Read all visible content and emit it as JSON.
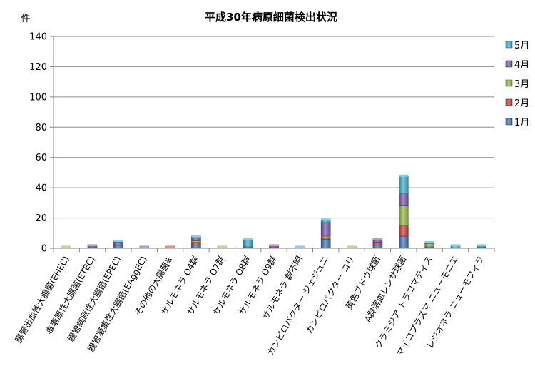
{
  "chart_data": {
    "type": "bar",
    "stacked": true,
    "title": "平成30年病原細菌検出状況",
    "ylabel": "件",
    "xlabel": "",
    "ylim": [
      0,
      140
    ],
    "yticks": [
      0,
      20,
      40,
      60,
      80,
      100,
      120,
      140
    ],
    "grid": true,
    "legend_position": "right",
    "categories": [
      "腸管出血性大腸菌(EHEC)",
      "毒素原性大腸菌(ETEC)",
      "腸管病原性大腸菌(EPEC)",
      "腸管凝集性大腸菌(EAggEC)",
      "その他の大腸菌※",
      "サルモネラ O4群",
      "サルモネラ O7群",
      "サルモネラ O8群",
      "サルモネラ O9群",
      "サルモネラ 群不明",
      "カンピロバクター ジェジュニ",
      "カンピロバクター コリ",
      "黄色ブドウ球菌",
      "A群溶血レンサ球菌",
      "クラミジア トラコマティス",
      "マイコプラズマ ニューモニエ",
      "レジオネラ ニューモフィラ"
    ],
    "series": [
      {
        "name": "1月",
        "color": "#3b6db4",
        "values": [
          0,
          1,
          2,
          0,
          0,
          2,
          0,
          1,
          0,
          0,
          6,
          0,
          2,
          8,
          1,
          0,
          1
        ]
      },
      {
        "name": "2月",
        "color": "#c0392f",
        "values": [
          0,
          0,
          0,
          0,
          1,
          2,
          0,
          0,
          1,
          0,
          1,
          0,
          2,
          7,
          0,
          0,
          0
        ]
      },
      {
        "name": "3月",
        "color": "#8db43c",
        "values": [
          1,
          0,
          0,
          0,
          0,
          1,
          1,
          0,
          0,
          0,
          1,
          1,
          0,
          13,
          2,
          0,
          0
        ]
      },
      {
        "name": "4月",
        "color": "#7454a4",
        "values": [
          0,
          1,
          2,
          1,
          0,
          2,
          0,
          0,
          1,
          0,
          9,
          0,
          2,
          8,
          0,
          0,
          0
        ]
      },
      {
        "name": "5月",
        "color": "#34aac7",
        "values": [
          0,
          0,
          1,
          0,
          0,
          1,
          0,
          5,
          0,
          1,
          2,
          0,
          0,
          12,
          1,
          2,
          1
        ]
      }
    ]
  }
}
